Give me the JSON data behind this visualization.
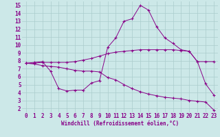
{
  "xlabel": "Windchill (Refroidissement éolien,°C)",
  "background_color": "#cce8e8",
  "line_color": "#880088",
  "grid_color": "#aacccc",
  "xlim": [
    -0.5,
    23.5
  ],
  "ylim": [
    1.5,
    15.5
  ],
  "xticks": [
    0,
    1,
    2,
    3,
    4,
    5,
    6,
    7,
    8,
    9,
    10,
    11,
    12,
    13,
    14,
    15,
    16,
    17,
    18,
    19,
    20,
    21,
    22,
    23
  ],
  "yticks": [
    2,
    3,
    4,
    5,
    6,
    7,
    8,
    9,
    10,
    11,
    12,
    13,
    14,
    15
  ],
  "line1_x": [
    0,
    1,
    2,
    3,
    4,
    5,
    6,
    7,
    8,
    9,
    10,
    11,
    12,
    13,
    14,
    15,
    16,
    17,
    18,
    19,
    20,
    21,
    22,
    23
  ],
  "line1_y": [
    7.7,
    7.8,
    7.9,
    6.7,
    4.5,
    4.2,
    4.3,
    4.3,
    5.2,
    5.5,
    9.7,
    10.9,
    13.0,
    13.3,
    15.0,
    14.4,
    12.3,
    10.9,
    10.2,
    9.4,
    9.2,
    7.9,
    5.1,
    3.7
  ],
  "line2_x": [
    0,
    1,
    2,
    3,
    4,
    5,
    6,
    7,
    8,
    9,
    10,
    11,
    12,
    13,
    14,
    15,
    16,
    17,
    18,
    19,
    20,
    21,
    22,
    23
  ],
  "line2_y": [
    7.7,
    7.7,
    7.8,
    7.8,
    7.8,
    7.8,
    7.9,
    8.1,
    8.3,
    8.6,
    8.9,
    9.1,
    9.2,
    9.3,
    9.4,
    9.4,
    9.4,
    9.4,
    9.4,
    9.3,
    9.2,
    7.9,
    7.9,
    7.9
  ],
  "line3_x": [
    0,
    1,
    2,
    3,
    4,
    5,
    6,
    7,
    8,
    9,
    10,
    11,
    12,
    13,
    14,
    15,
    16,
    17,
    18,
    19,
    20,
    21,
    22,
    23
  ],
  "line3_y": [
    7.7,
    7.6,
    7.4,
    7.3,
    7.2,
    7.0,
    6.8,
    6.7,
    6.7,
    6.6,
    5.9,
    5.6,
    5.0,
    4.5,
    4.1,
    3.8,
    3.6,
    3.4,
    3.3,
    3.2,
    3.0,
    2.9,
    2.8,
    1.8
  ],
  "xlabel_fontsize": 5.5,
  "tick_fontsize": 5.5,
  "tick_color": "#880088"
}
